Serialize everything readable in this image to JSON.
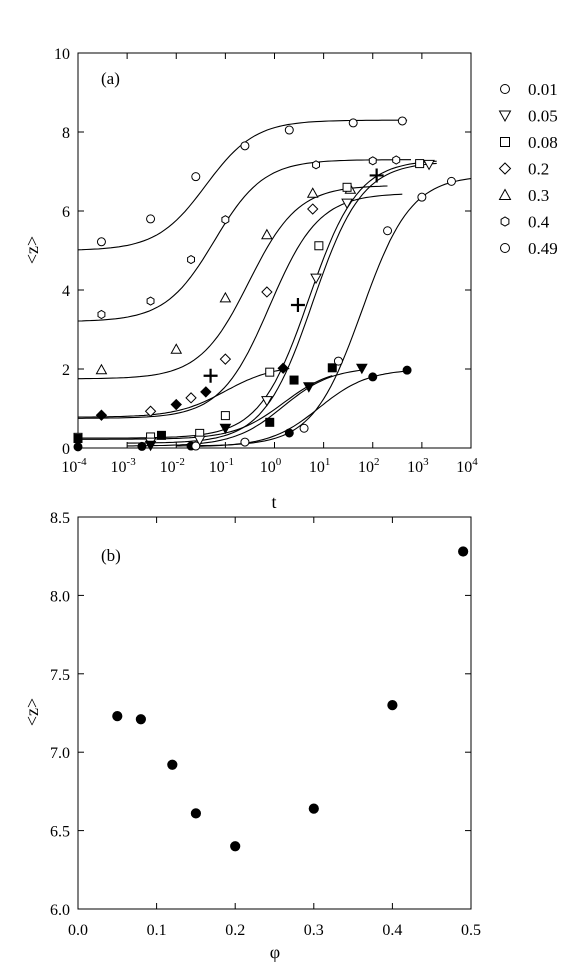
{
  "chart_data": [
    {
      "panel_label": "(a)",
      "type": "line",
      "x_scale": "log",
      "xlabel": "t",
      "ylabel": "<z>",
      "xlim": [
        0.0001,
        10000
      ],
      "ylim": [
        0,
        10
      ],
      "x_tick_labels": [
        {
          "base": "10",
          "exp": "-4"
        },
        {
          "base": "10",
          "exp": "-3"
        },
        {
          "base": "10",
          "exp": "-2"
        },
        {
          "base": "10",
          "exp": "-1"
        },
        {
          "base": "10",
          "exp": "0"
        },
        {
          "base": "10",
          "exp": "1"
        },
        {
          "base": "10",
          "exp": "2"
        },
        {
          "base": "10",
          "exp": "3"
        },
        {
          "base": "10",
          "exp": "4"
        }
      ],
      "y_tick_labels": [
        "0",
        "2",
        "4",
        "6",
        "8",
        "10"
      ],
      "legend_position": "right",
      "legend": [
        {
          "label": "0.01",
          "marker": "circle"
        },
        {
          "label": "0.05",
          "marker": "triangle-down"
        },
        {
          "label": "0.08",
          "marker": "square"
        },
        {
          "label": "0.2",
          "marker": "diamond"
        },
        {
          "label": "0.3",
          "marker": "triangle-up"
        },
        {
          "label": "0.4",
          "marker": "hexagon"
        },
        {
          "label": "0.49",
          "marker": "circle"
        }
      ],
      "series": [
        {
          "marker": "circle",
          "filled": false,
          "points": [
            [
              0.0003,
              5.22
            ],
            [
              0.003,
              5.8
            ],
            [
              0.025,
              6.87
            ],
            [
              0.25,
              7.65
            ],
            [
              2,
              8.05
            ],
            [
              40,
              8.23
            ],
            [
              400,
              8.28
            ]
          ],
          "fit_asymptotes": [
            5.0,
            8.3
          ],
          "fit_mid": 0.04,
          "fit_range": [
            0.0001,
            500
          ]
        },
        {
          "marker": "hexagon",
          "filled": false,
          "points": [
            [
              0.0003,
              3.38
            ],
            [
              0.003,
              3.72
            ],
            [
              0.02,
              4.77
            ],
            [
              0.1,
              5.78
            ],
            [
              7,
              7.17
            ],
            [
              100,
              7.27
            ],
            [
              300,
              7.29
            ]
          ],
          "fit_asymptotes": [
            3.2,
            7.3
          ],
          "fit_mid": 0.06,
          "fit_range": [
            0.0001,
            600
          ]
        },
        {
          "marker": "triangle-up",
          "filled": false,
          "points": [
            [
              0.0003,
              1.98
            ],
            [
              0.01,
              2.5
            ],
            [
              0.1,
              3.8
            ],
            [
              0.7,
              5.4
            ],
            [
              6,
              6.45
            ],
            [
              35,
              6.55
            ]
          ],
          "fit_asymptotes": [
            1.75,
            6.65
          ],
          "fit_mid": 0.3,
          "fit_range": [
            0.0001,
            200
          ]
        },
        {
          "marker": "diamond",
          "filled": false,
          "points": [
            [
              0.003,
              0.93
            ],
            [
              0.02,
              1.27
            ],
            [
              0.1,
              2.25
            ],
            [
              0.7,
              3.95
            ],
            [
              6,
              6.05
            ]
          ],
          "fit_asymptotes": [
            0.75,
            6.45
          ],
          "fit_mid": 0.8,
          "fit_range": [
            0.0001,
            400
          ]
        },
        {
          "marker": "diamond",
          "filled": true,
          "points": [
            [
              0.0003,
              0.83
            ],
            [
              0.01,
              1.1
            ],
            [
              0.04,
              1.42
            ],
            [
              1.5,
              2.02
            ]
          ],
          "fit_asymptotes": [
            0.78,
            2.1
          ],
          "fit_mid": 0.1,
          "fit_range": [
            0.0001,
            2
          ]
        },
        {
          "marker": "square",
          "filled": false,
          "points": [
            [
              0.0001,
              0.27
            ],
            [
              0.003,
              0.28
            ],
            [
              0.03,
              0.37
            ],
            [
              0.1,
              0.82
            ],
            [
              0.8,
              1.92
            ],
            [
              8,
              5.12
            ],
            [
              30,
              6.6
            ],
            [
              900,
              7.2
            ]
          ],
          "fit_asymptotes": [
            0.25,
            7.3
          ],
          "fit_mid": 5,
          "fit_range": [
            0.0001,
            2000
          ]
        },
        {
          "marker": "triangle-down",
          "filled": false,
          "points": [
            [
              0.003,
              0.15
            ],
            [
              0.03,
              0.2
            ],
            [
              0.7,
              1.2
            ],
            [
              7,
              4.3
            ],
            [
              30,
              6.2
            ],
            [
              1400,
              7.18
            ]
          ],
          "fit_asymptotes": [
            0.12,
            7.25
          ],
          "fit_mid": 6,
          "fit_range": [
            0.001,
            2000
          ]
        },
        {
          "marker": "square",
          "filled": true,
          "points": [
            [
              0.0001,
              0.24
            ],
            [
              0.005,
              0.32
            ],
            [
              0.8,
              0.65
            ],
            [
              2.5,
              1.72
            ],
            [
              15,
              2.03
            ]
          ],
          "fit_asymptotes": [
            0.22,
            2.05
          ],
          "fit_mid": 1.5,
          "fit_range": [
            0.0001,
            15
          ]
        },
        {
          "marker": "triangle-down",
          "filled": true,
          "points": [
            [
              0.003,
              0.07
            ],
            [
              0.1,
              0.5
            ],
            [
              5,
              1.55
            ],
            [
              60,
              2.02
            ]
          ],
          "fit_asymptotes": [
            0.05,
            2.05
          ],
          "fit_mid": 1.5,
          "fit_range": [
            0.001,
            60
          ]
        },
        {
          "marker": "circle",
          "filled": true,
          "points": [
            [
              0.0001,
              0.03
            ],
            [
              0.002,
              0.04
            ],
            [
              0.02,
              0.05
            ],
            [
              2,
              0.38
            ],
            [
              100,
              1.8
            ],
            [
              500,
              1.97
            ]
          ],
          "fit_asymptotes": [
            0.03,
            2.0
          ],
          "fit_mid": 8,
          "fit_range": [
            0.02,
            500
          ]
        },
        {
          "marker": "circle",
          "filled": false,
          "points": [
            [
              0.025,
              0.05
            ],
            [
              0.25,
              0.15
            ],
            [
              4,
              0.5
            ],
            [
              20,
              2.2
            ],
            [
              200,
              5.5
            ],
            [
              1000,
              6.35
            ],
            [
              4000,
              6.75
            ]
          ],
          "fit_asymptotes": [
            0.05,
            6.9
          ],
          "fit_mid": 60,
          "fit_range": [
            0.01,
            10000
          ]
        }
      ],
      "plus_markers": [
        [
          0.05,
          1.83
        ],
        [
          3,
          3.62
        ],
        [
          120,
          6.9
        ]
      ]
    },
    {
      "panel_label": "(b)",
      "type": "scatter",
      "xlabel": "φ",
      "ylabel": "<z>",
      "xlim": [
        0.0,
        0.5
      ],
      "ylim": [
        6.0,
        8.5
      ],
      "x_tick_labels": [
        "0.0",
        "0.1",
        "0.2",
        "0.3",
        "0.4",
        "0.5"
      ],
      "y_tick_labels": [
        "6.0",
        "6.5",
        "7.0",
        "7.5",
        "8.0",
        "8.5"
      ],
      "points": [
        [
          0.05,
          7.23
        ],
        [
          0.08,
          7.21
        ],
        [
          0.12,
          6.92
        ],
        [
          0.15,
          6.61
        ],
        [
          0.2,
          6.4
        ],
        [
          0.3,
          6.64
        ],
        [
          0.4,
          7.3
        ],
        [
          0.49,
          8.28
        ]
      ]
    }
  ]
}
